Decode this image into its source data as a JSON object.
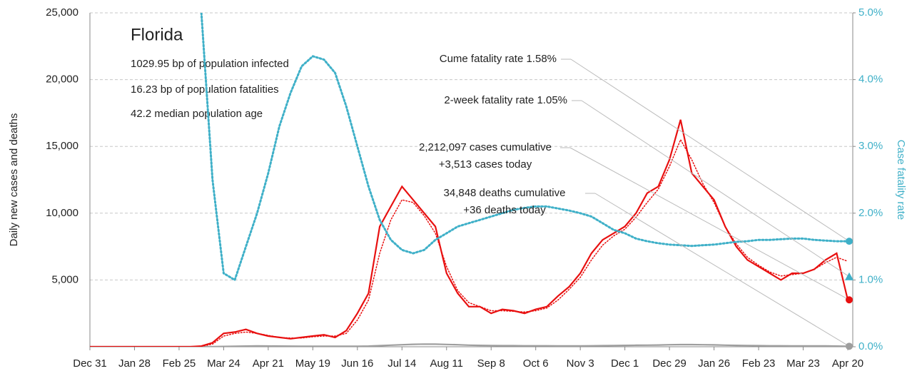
{
  "chart_data": {
    "type": "line",
    "ylabel": "Daily new cases and deaths",
    "y2label": "Case fatality rate",
    "categories": [
      "Dec 31",
      null,
      null,
      null,
      "Jan 28",
      null,
      null,
      null,
      "Feb 25",
      null,
      null,
      null,
      "Mar 24",
      null,
      null,
      null,
      "Apr 21",
      null,
      null,
      null,
      "May 19",
      null,
      null,
      null,
      "Jun 16",
      null,
      null,
      null,
      "Jul 14",
      null,
      null,
      null,
      "Aug 11",
      null,
      null,
      null,
      "Sep 8",
      null,
      null,
      null,
      "Oct 6",
      null,
      null,
      null,
      "Nov 3",
      null,
      null,
      null,
      "Dec 1",
      null,
      null,
      null,
      "Dec 29",
      null,
      null,
      null,
      "Jan 26",
      null,
      null,
      null,
      "Feb 23",
      null,
      null,
      null,
      "Mar 23",
      null,
      null,
      null,
      "Apr 20"
    ],
    "ylim": [
      0,
      25000
    ],
    "yticks": [
      {
        "value": 5000,
        "label": "5,000"
      },
      {
        "value": 10000,
        "label": "10,000"
      },
      {
        "value": 15000,
        "label": "15,000"
      },
      {
        "value": 20000,
        "label": "20,000"
      },
      {
        "value": 25000,
        "label": "25,000"
      }
    ],
    "y2lim": [
      0,
      5
    ],
    "y2ticks": [
      {
        "value": 0,
        "label": "0.0%"
      },
      {
        "value": 1,
        "label": "1.0%"
      },
      {
        "value": 2,
        "label": "2.0%"
      },
      {
        "value": 3,
        "label": "3.0%"
      },
      {
        "value": 4,
        "label": "4.0%"
      },
      {
        "value": 5,
        "label": "5.0%"
      }
    ],
    "grid": true,
    "series": [
      {
        "color": "#9e9e9e",
        "style": "solid",
        "values": [
          0,
          0,
          0,
          0,
          0,
          0,
          0,
          0,
          0,
          0,
          0,
          5,
          20,
          40,
          50,
          60,
          55,
          50,
          45,
          40,
          40,
          35,
          30,
          30,
          40,
          50,
          80,
          120,
          150,
          180,
          200,
          190,
          170,
          150,
          120,
          100,
          90,
          80,
          80,
          70,
          70,
          70,
          60,
          60,
          60,
          70,
          80,
          90,
          100,
          110,
          120,
          130,
          150,
          160,
          160,
          150,
          140,
          120,
          100,
          90,
          80,
          70,
          70,
          60,
          60,
          60,
          60,
          50,
          36
        ]
      },
      {
        "color": "#e81010",
        "style": "solid",
        "values": [
          0,
          0,
          0,
          0,
          0,
          0,
          0,
          0,
          0,
          0,
          50,
          300,
          1000,
          1100,
          1300,
          1000,
          800,
          700,
          600,
          700,
          800,
          900,
          700,
          1200,
          2500,
          4000,
          9000,
          10500,
          12000,
          11000,
          10000,
          9000,
          5500,
          4000,
          3000,
          3000,
          2500,
          2800,
          2700,
          2500,
          2800,
          3000,
          3800,
          4500,
          5500,
          7000,
          8000,
          8500,
          9000,
          10000,
          11500,
          12000,
          14000,
          17000,
          13000,
          12000,
          11000,
          9000,
          7500,
          6500,
          6000,
          5500,
          5000,
          5500,
          5500,
          5800,
          6500,
          7000,
          3513
        ]
      },
      {
        "color": "#e81010",
        "style": "dotted",
        "values": [
          0,
          0,
          0,
          0,
          0,
          0,
          0,
          0,
          0,
          0,
          30,
          200,
          800,
          1000,
          1100,
          1000,
          850,
          700,
          650,
          650,
          750,
          800,
          800,
          1000,
          2000,
          3500,
          7000,
          9500,
          11000,
          10800,
          9800,
          8500,
          6000,
          4200,
          3300,
          3000,
          2700,
          2700,
          2650,
          2600,
          2700,
          2900,
          3500,
          4300,
          5200,
          6500,
          7600,
          8300,
          8800,
          9700,
          10800,
          11800,
          13500,
          15500,
          14000,
          12200,
          10800,
          9000,
          7700,
          6700,
          6100,
          5600,
          5300,
          5400,
          5500,
          5800,
          6300,
          6700,
          6400
        ]
      },
      {
        "color": "#3fb0c8",
        "style": "dotted",
        "axis": "y2",
        "values": [
          null,
          null,
          null,
          null,
          null,
          null,
          null,
          null,
          null,
          null,
          5.0,
          2.5,
          1.1,
          1.0,
          1.5,
          2.0,
          2.6,
          3.3,
          3.8,
          4.2,
          4.35,
          4.3,
          4.1,
          3.6,
          3.0,
          2.4,
          1.9,
          1.6,
          1.45,
          1.4,
          1.45,
          1.6,
          1.7,
          1.8,
          1.85,
          1.9,
          1.95,
          2.0,
          2.05,
          2.08,
          2.1,
          2.1,
          2.07,
          2.04,
          2.0,
          1.95,
          1.85,
          1.75,
          1.7,
          1.62,
          1.58,
          1.55,
          1.53,
          1.52,
          1.51,
          1.52,
          1.53,
          1.55,
          1.57,
          1.58,
          1.6,
          1.6,
          1.61,
          1.62,
          1.62,
          1.6,
          1.59,
          1.58,
          1.58
        ]
      }
    ],
    "title": "Florida",
    "subtitle": [
      "1029.95 bp of population infected",
      "16.23 bp of population fatalities",
      "42.2 median population age"
    ],
    "annotations": [
      {
        "text": [
          "Cume fatality rate 1.58%"
        ],
        "value": 1.58,
        "axis": "y2",
        "color": "#3fb0c8",
        "marker": "circle"
      },
      {
        "text": [
          "2-week fatality rate 1.05%"
        ],
        "value": 1.05,
        "axis": "y2",
        "color": "#3fb0c8",
        "marker": "triangle"
      },
      {
        "text": [
          "2,212,097 cases cumulative",
          "+3,513 cases today"
        ],
        "value": 3513,
        "axis": "y",
        "color": "#e81010",
        "marker": "circle"
      },
      {
        "text": [
          "34,848 deaths cumulative",
          "+36 deaths today"
        ],
        "value": 36,
        "axis": "y",
        "color": "#9e9e9e",
        "marker": "circle"
      }
    ]
  }
}
